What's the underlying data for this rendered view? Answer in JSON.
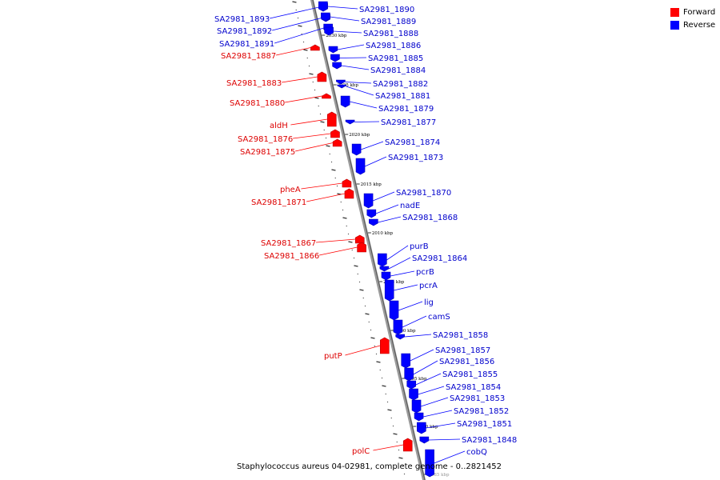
{
  "legend": {
    "forward": {
      "label": "Forward",
      "color": "#ff0000"
    },
    "reverse": {
      "label": "Reverse",
      "color": "#0000ff"
    }
  },
  "caption": "Staphylococcus aureus 04-02981, complete genome - 0..2821452",
  "axis": {
    "scale_labels": [
      {
        "label": "2030 kbp"
      },
      {
        "label": "2025 kbp"
      },
      {
        "label": "2020 kbp"
      },
      {
        "label": "2015 kbp"
      },
      {
        "label": "2010 kbp"
      },
      {
        "label": "2005 kbp"
      },
      {
        "label": "2000 kbp"
      },
      {
        "label": "1995 kbp"
      },
      {
        "label": "1990 kbp"
      },
      {
        "label": "1985 kbp"
      }
    ]
  },
  "genes": [
    {
      "name": "SA2981_1893",
      "strand": "reverse"
    },
    {
      "name": "SA2981_1892",
      "strand": "reverse"
    },
    {
      "name": "SA2981_1891",
      "strand": "reverse"
    },
    {
      "name": "SA2981_1890",
      "strand": "reverse"
    },
    {
      "name": "SA2981_1889",
      "strand": "reverse"
    },
    {
      "name": "SA2981_1888",
      "strand": "reverse"
    },
    {
      "name": "SA2981_1887",
      "strand": "forward"
    },
    {
      "name": "SA2981_1886",
      "strand": "reverse"
    },
    {
      "name": "SA2981_1885",
      "strand": "reverse"
    },
    {
      "name": "SA2981_1884",
      "strand": "reverse"
    },
    {
      "name": "SA2981_1883",
      "strand": "forward"
    },
    {
      "name": "SA2981_1882",
      "strand": "reverse"
    },
    {
      "name": "SA2981_1881",
      "strand": "reverse"
    },
    {
      "name": "SA2981_1880",
      "strand": "forward"
    },
    {
      "name": "SA2981_1879",
      "strand": "reverse"
    },
    {
      "name": "SA2981_1877",
      "strand": "reverse"
    },
    {
      "name": "aldH",
      "strand": "forward"
    },
    {
      "name": "SA2981_1876",
      "strand": "forward"
    },
    {
      "name": "SA2981_1875",
      "strand": "forward"
    },
    {
      "name": "SA2981_1874",
      "strand": "reverse"
    },
    {
      "name": "SA2981_1873",
      "strand": "reverse"
    },
    {
      "name": "pheA",
      "strand": "forward"
    },
    {
      "name": "SA2981_1871",
      "strand": "forward"
    },
    {
      "name": "SA2981_1870",
      "strand": "reverse"
    },
    {
      "name": "nadE",
      "strand": "reverse"
    },
    {
      "name": "SA2981_1868",
      "strand": "reverse"
    },
    {
      "name": "SA2981_1867",
      "strand": "forward"
    },
    {
      "name": "SA2981_1866",
      "strand": "forward"
    },
    {
      "name": "purB",
      "strand": "reverse"
    },
    {
      "name": "SA2981_1864",
      "strand": "reverse"
    },
    {
      "name": "pcrB",
      "strand": "reverse"
    },
    {
      "name": "pcrA",
      "strand": "reverse"
    },
    {
      "name": "lig",
      "strand": "reverse"
    },
    {
      "name": "camS",
      "strand": "reverse"
    },
    {
      "name": "SA2981_1858",
      "strand": "reverse"
    },
    {
      "name": "putP",
      "strand": "forward"
    },
    {
      "name": "SA2981_1857",
      "strand": "reverse"
    },
    {
      "name": "SA2981_1856",
      "strand": "reverse"
    },
    {
      "name": "SA2981_1855",
      "strand": "reverse"
    },
    {
      "name": "SA2981_1854",
      "strand": "reverse"
    },
    {
      "name": "SA2981_1853",
      "strand": "reverse"
    },
    {
      "name": "SA2981_1852",
      "strand": "reverse"
    },
    {
      "name": "SA2981_1851",
      "strand": "reverse"
    },
    {
      "name": "SA2981_1848",
      "strand": "reverse"
    },
    {
      "name": "polC",
      "strand": "forward"
    },
    {
      "name": "cobQ",
      "strand": "reverse"
    }
  ]
}
